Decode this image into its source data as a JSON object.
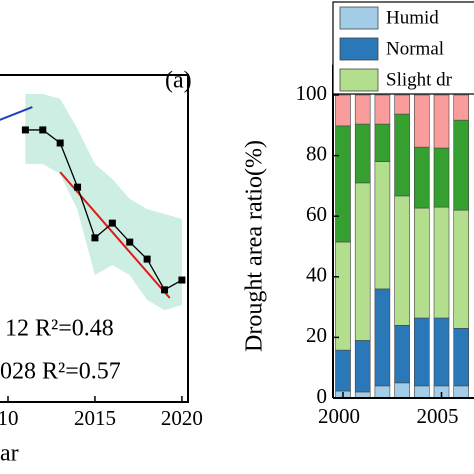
{
  "chart_data": [
    {
      "type": "line",
      "annotations": [
        "(a)",
        "12 R²=0.48",
        "028 R²=0.57"
      ],
      "xlabel": "ar",
      "x": [
        2011,
        2012,
        2013,
        2014,
        2015,
        2016,
        2017,
        2018,
        2019,
        2020
      ],
      "series": [
        {
          "color": "#000000",
          "values": [
            83.2,
            83.2,
            79.2,
            65.7,
            50.2,
            54.7,
            48.9,
            43.7,
            34.3,
            37.3
          ]
        }
      ],
      "band": {
        "color": "#cdeee2",
        "upper": [
          94.2,
          94.2,
          92.7,
          83.5,
          72.8,
          68.2,
          62.1,
          59.0,
          57.5,
          56.0
        ],
        "lower": [
          72.8,
          72.8,
          69.7,
          58.7,
          38.8,
          41.9,
          38.8,
          31.2,
          28.1,
          29.7
        ]
      },
      "trends": [
        {
          "color": "#e01818",
          "x": [
            2013,
            2019.3
          ],
          "values": [
            70.3,
            31.8
          ]
        },
        {
          "color": "#1f3fc0",
          "x": [
            2009.5,
            2011.4
          ],
          "values": [
            86.2,
            90.2
          ]
        }
      ],
      "xlim": [
        2009.54,
        2020.35
      ],
      "ylim": [
        0,
        100
      ],
      "xticks": [
        {
          "value": 2010,
          "label": "10"
        },
        2015,
        2020
      ]
    },
    {
      "type": "bar",
      "stacked": true,
      "ylabel": "Drought area ratio(%)",
      "categories": [
        "2000",
        null,
        null,
        null,
        null,
        "2005",
        null
      ],
      "series": [
        {
          "name": "Humid",
          "color": "#a3cde6",
          "values": [
            2.3,
            2.0,
            4.0,
            5.0,
            4.0,
            4.0,
            4.0
          ]
        },
        {
          "name": "Normal",
          "color": "#2a78b8",
          "values": [
            13.5,
            17.0,
            32.0,
            19.0,
            22.4,
            22.4,
            19.0
          ]
        },
        {
          "name": "Slight dr",
          "color": "#b3de8e",
          "values": [
            35.7,
            52.0,
            42.0,
            42.7,
            36.3,
            36.6,
            39.0
          ]
        },
        {
          "color": "#35a02f",
          "values": [
            38.3,
            19.4,
            12.4,
            27.0,
            20.1,
            19.5,
            29.7
          ]
        },
        {
          "color": "#f99c9c",
          "values": [
            10.2,
            9.6,
            9.6,
            6.3,
            17.2,
            17.5,
            8.3
          ]
        }
      ],
      "ylim": [
        0,
        110
      ],
      "yticks": [
        0,
        20,
        40,
        60,
        80,
        100
      ]
    }
  ]
}
